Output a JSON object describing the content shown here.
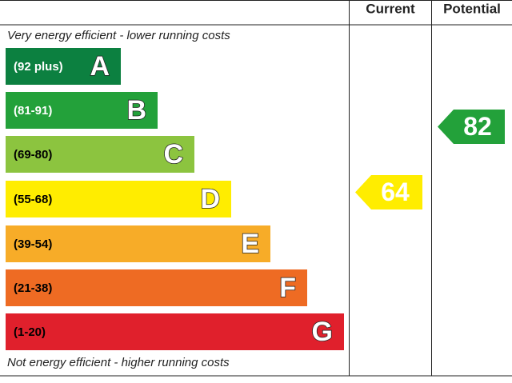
{
  "header": {
    "current": "Current",
    "potential": "Potential"
  },
  "top_note": "Very energy efficient - lower running costs",
  "bottom_note": "Not energy efficient - higher running costs",
  "bands": [
    {
      "range": "(92 plus)",
      "letter": "A",
      "color": "#0c8040",
      "text_color": "#ffffff"
    },
    {
      "range": "(81-91)",
      "letter": "B",
      "color": "#23a13a",
      "text_color": "#ffffff"
    },
    {
      "range": "(69-80)",
      "letter": "C",
      "color": "#8cc43f",
      "text_color": "#000000"
    },
    {
      "range": "(55-68)",
      "letter": "D",
      "color": "#ffed00",
      "text_color": "#000000"
    },
    {
      "range": "(39-54)",
      "letter": "E",
      "color": "#f7ac28",
      "text_color": "#000000"
    },
    {
      "range": "(21-38)",
      "letter": "F",
      "color": "#ee6b23",
      "text_color": "#000000"
    },
    {
      "range": "(1-20)",
      "letter": "G",
      "color": "#e0202c",
      "text_color": "#000000"
    }
  ],
  "current": {
    "value": "64",
    "color": "#ffed00"
  },
  "potential": {
    "value": "82",
    "color": "#23a13a"
  }
}
